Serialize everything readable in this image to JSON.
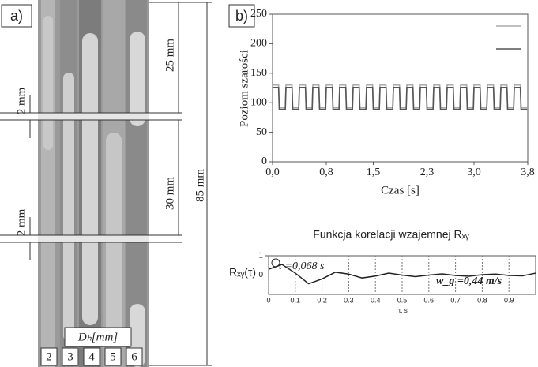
{
  "panel_a": {
    "label": "a)",
    "dims": {
      "top_gap": "2 mm",
      "upper": "25 mm",
      "middle": "30 mm",
      "lower_gap": "2 mm",
      "total": "85 mm"
    },
    "dh_label": "Dₕ[mm]",
    "channels": [
      "2",
      "3",
      "4",
      "5",
      "6"
    ]
  },
  "chart_data": [
    {
      "type": "line",
      "panel": "b)",
      "xlabel": "Czas [s]",
      "ylabel": "Poziom szarości",
      "x": [
        0,
        0.09,
        0.1,
        0.19,
        0.2,
        0.29,
        0.3,
        0.39,
        0.4,
        0.49,
        0.5,
        0.59,
        0.6,
        0.69,
        0.7,
        0.79,
        0.8,
        0.89,
        0.9,
        0.99,
        1.0,
        1.09,
        1.1,
        1.19,
        1.2,
        1.29,
        1.3,
        1.39,
        1.4,
        1.49,
        1.5,
        1.59,
        1.6,
        1.69,
        1.7,
        1.79,
        1.8,
        1.89,
        1.9,
        1.99,
        2.0,
        2.09,
        2.1,
        2.19,
        2.2,
        2.29,
        2.3,
        2.39,
        2.4,
        2.49,
        2.5,
        2.59,
        2.6,
        2.69,
        2.7,
        2.79,
        2.8,
        2.89,
        2.9,
        2.99,
        3.0,
        3.09,
        3.1,
        3.19,
        3.2,
        3.29,
        3.3,
        3.39,
        3.4,
        3.49,
        3.5,
        3.59,
        3.6,
        3.69,
        3.7,
        3.79
      ],
      "series": [
        {
          "color": "#aaaaaa",
          "values": [
            130,
            130,
            92,
            92,
            130,
            130,
            92,
            92,
            130,
            130,
            92,
            92,
            130,
            130,
            92,
            92,
            130,
            130,
            92,
            92,
            130,
            130,
            92,
            92,
            130,
            130,
            92,
            92,
            130,
            130,
            92,
            92,
            130,
            130,
            92,
            92,
            130,
            130,
            92,
            92,
            130,
            130,
            92,
            92,
            130,
            130,
            92,
            92,
            130,
            130,
            92,
            92,
            130,
            130,
            92,
            92,
            130,
            130,
            92,
            92,
            130,
            130,
            92,
            92,
            130,
            130,
            92,
            92,
            130,
            130,
            92,
            92,
            130,
            130,
            92,
            92
          ]
        },
        {
          "color": "#555555",
          "values": [
            126,
            126,
            89,
            89,
            126,
            126,
            89,
            89,
            126,
            126,
            89,
            89,
            126,
            126,
            89,
            89,
            126,
            126,
            89,
            89,
            126,
            126,
            89,
            89,
            126,
            126,
            89,
            89,
            126,
            126,
            89,
            89,
            126,
            126,
            89,
            89,
            126,
            126,
            89,
            89,
            126,
            126,
            89,
            89,
            126,
            126,
            89,
            89,
            126,
            126,
            89,
            89,
            126,
            126,
            89,
            89,
            126,
            126,
            89,
            89,
            126,
            126,
            89,
            89,
            126,
            126,
            89,
            89,
            126,
            126,
            89,
            89,
            126,
            126,
            89,
            89
          ]
        }
      ],
      "xlim": [
        0,
        3.8
      ],
      "ylim": [
        0,
        250
      ],
      "yticks": [
        0,
        50,
        100,
        150,
        200,
        250
      ],
      "xticks": [
        {
          "value": 0,
          "label": "0,0"
        },
        {
          "value": 0.8,
          "label": "0,8"
        },
        {
          "value": 1.5,
          "label": "1,5"
        },
        {
          "value": 2.3,
          "label": "2,3"
        },
        {
          "value": 3.0,
          "label": "3,0"
        },
        {
          "value": 3.8,
          "label": "3,8"
        }
      ],
      "grid": false
    },
    {
      "type": "line",
      "title": "Funkcja korelacji wzajemnej Rₓᵧ",
      "xlabel": "τ, s",
      "ylabel": "Rₓᵧ(τ)",
      "annotations": [
        "τ =0,068 s",
        "w_g =0,44 m/s"
      ],
      "x": [
        0,
        0.05,
        0.1,
        0.15,
        0.2,
        0.25,
        0.3,
        0.35,
        0.4,
        0.45,
        0.5,
        0.55,
        0.6,
        0.65,
        0.7,
        0.75,
        0.8,
        0.85,
        0.9,
        0.95,
        1.0
      ],
      "series": [
        {
          "color": "#222222",
          "values": [
            0.3,
            0.55,
            0.1,
            -0.45,
            -0.2,
            0.15,
            0.05,
            -0.15,
            -0.05,
            0.1,
            0.0,
            -0.08,
            0.0,
            0.06,
            -0.02,
            -0.06,
            0.02,
            0.05,
            -0.02,
            -0.04,
            0.1
          ]
        }
      ],
      "xlim": [
        0,
        1
      ],
      "ylim": [
        -1,
        1
      ],
      "yticks": [
        0,
        1
      ],
      "xticks": [
        0,
        0.1,
        0.2,
        0.3,
        0.4,
        0.5,
        0.6,
        0.7,
        0.8,
        0.9
      ],
      "grid": true
    }
  ]
}
